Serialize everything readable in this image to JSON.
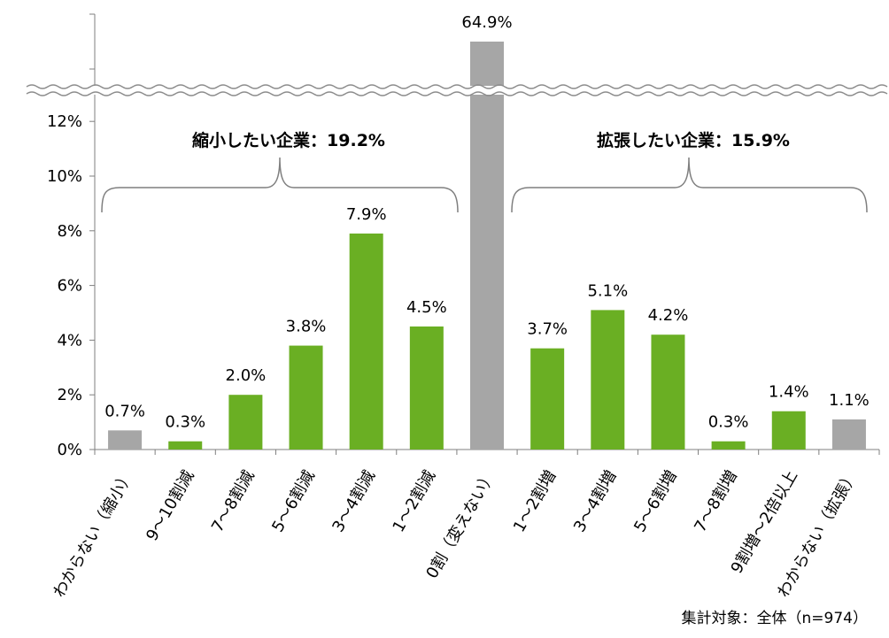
{
  "chart_data": {
    "type": "bar",
    "categories": [
      "わからない（縮小）",
      "9～10割減",
      "7～8割減",
      "5～6割減",
      "3～4割減",
      "1～2割減",
      "0割（変えない）",
      "1～2割増",
      "3～4割増",
      "5～6割増",
      "7～8割増",
      "9割増～2倍以上",
      "わからない（拡張）"
    ],
    "values": [
      0.7,
      0.3,
      2.0,
      3.8,
      7.9,
      4.5,
      64.9,
      3.7,
      5.1,
      4.2,
      0.3,
      1.4,
      1.1
    ],
    "value_labels": [
      "0.7%",
      "0.3%",
      "2.0%",
      "3.8%",
      "7.9%",
      "4.5%",
      "64.9%",
      "3.7%",
      "5.1%",
      "4.2%",
      "0.3%",
      "1.4%",
      "1.1%"
    ],
    "bar_colors": [
      "#a6a6a6",
      "#6aaf23",
      "#6aaf23",
      "#6aaf23",
      "#6aaf23",
      "#6aaf23",
      "#a6a6a6",
      "#6aaf23",
      "#6aaf23",
      "#6aaf23",
      "#6aaf23",
      "#6aaf23",
      "#a6a6a6"
    ],
    "colors": {
      "green": "#6aaf23",
      "gray": "#a6a6a6",
      "axis": "#7f7f7f"
    },
    "ylim": [
      0,
      12
    ],
    "axis_break": true,
    "yticks": [
      "0%",
      "2%",
      "4%",
      "6%",
      "8%",
      "10%",
      "12%"
    ],
    "ytick_values": [
      0,
      2,
      4,
      6,
      8,
      10,
      12
    ],
    "grid": false,
    "annotations": {
      "shrink_label": "縮小したい企業：19.2%",
      "expand_label": "拡張したい企業：15.9%",
      "footnote": "集計対象：全体（n=974）"
    }
  }
}
